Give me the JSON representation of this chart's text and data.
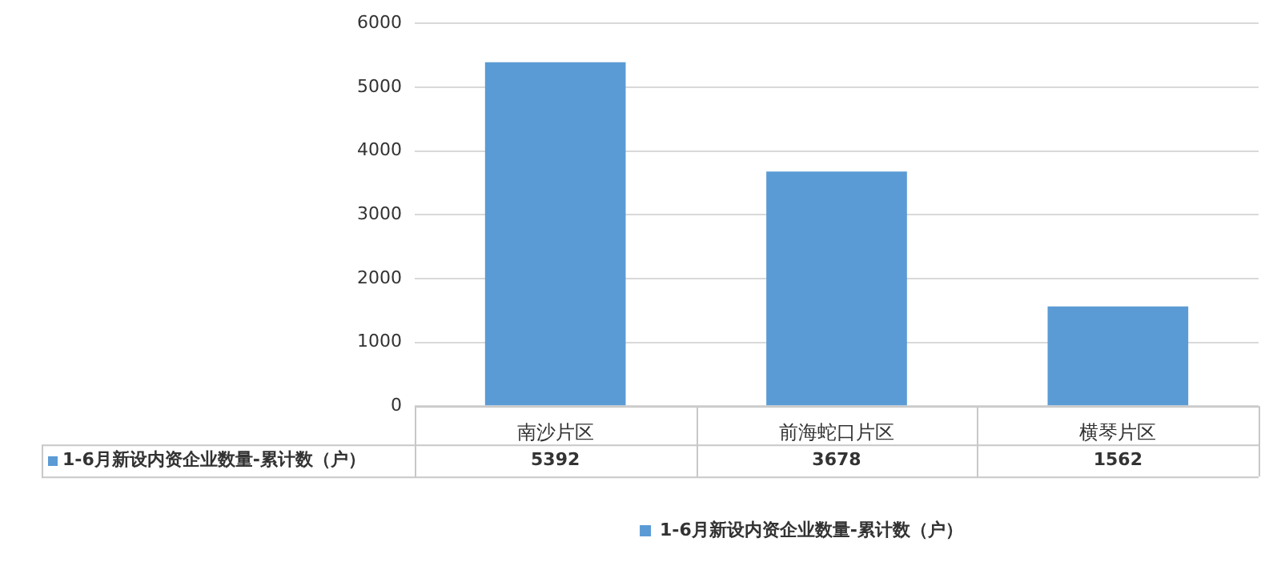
{
  "chart_data": {
    "type": "bar",
    "categories": [
      "南沙片区",
      "前海蛇口片区",
      "横琴片区"
    ],
    "series": [
      {
        "name": "1-6月新设内资企业数量-累计数（户）",
        "color": "#5b9bd5",
        "values": [
          5392,
          3678,
          1562
        ]
      }
    ],
    "ylim": [
      0,
      6000
    ],
    "yticks": [
      0,
      1000,
      2000,
      3000,
      4000,
      5000,
      6000
    ],
    "grid": "y",
    "legend": "bottom",
    "data_labels": true
  }
}
